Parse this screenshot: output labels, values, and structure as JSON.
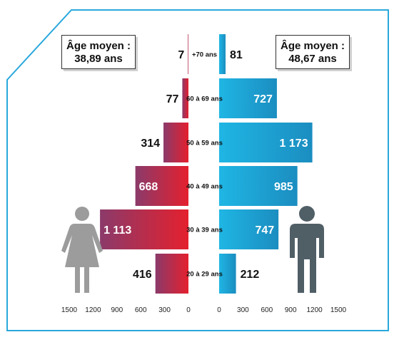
{
  "colors": {
    "frame": "#29a8dc",
    "female_start": "#8b3a6a",
    "female_end": "#e4202e",
    "male_start": "#1fb6e4",
    "male_end": "#1b8dc0",
    "female_icon": "#9c9c9c",
    "male_icon": "#505e66"
  },
  "icons": {
    "female": "woman-silhouette-icon",
    "male": "man-silhouette-icon"
  },
  "average_left": {
    "label": "Âge moyen :",
    "value": "38,89 ans"
  },
  "average_right": {
    "label": "Âge moyen :",
    "value": "48,67 ans"
  },
  "chart_data": {
    "type": "bar",
    "orientation": "horizontal-population-pyramid",
    "categories": [
      "+70 ans",
      "60 à 69 ans",
      "50 à 59 ans",
      "40 à 49 ans",
      "30 à 39 ans",
      "20 à 29 ans"
    ],
    "series": [
      {
        "side": "left",
        "values": [
          7,
          77,
          314,
          668,
          1113,
          416
        ],
        "labels": [
          "7",
          "77",
          "314",
          "668",
          "1 113",
          "416"
        ]
      },
      {
        "side": "right",
        "values": [
          81,
          727,
          1173,
          985,
          747,
          212
        ],
        "labels": [
          "81",
          "727",
          "1 173",
          "985",
          "747",
          "212"
        ]
      }
    ],
    "xlim": [
      0,
      1500
    ],
    "ticks_left": [
      "1500",
      "1200",
      "900",
      "600",
      "300",
      "0"
    ],
    "ticks_right": [
      "0",
      "300",
      "600",
      "900",
      "1200",
      "1500"
    ],
    "tick_values": [
      0,
      300,
      600,
      900,
      1200,
      1500
    ],
    "grid": false,
    "legend": "none"
  }
}
